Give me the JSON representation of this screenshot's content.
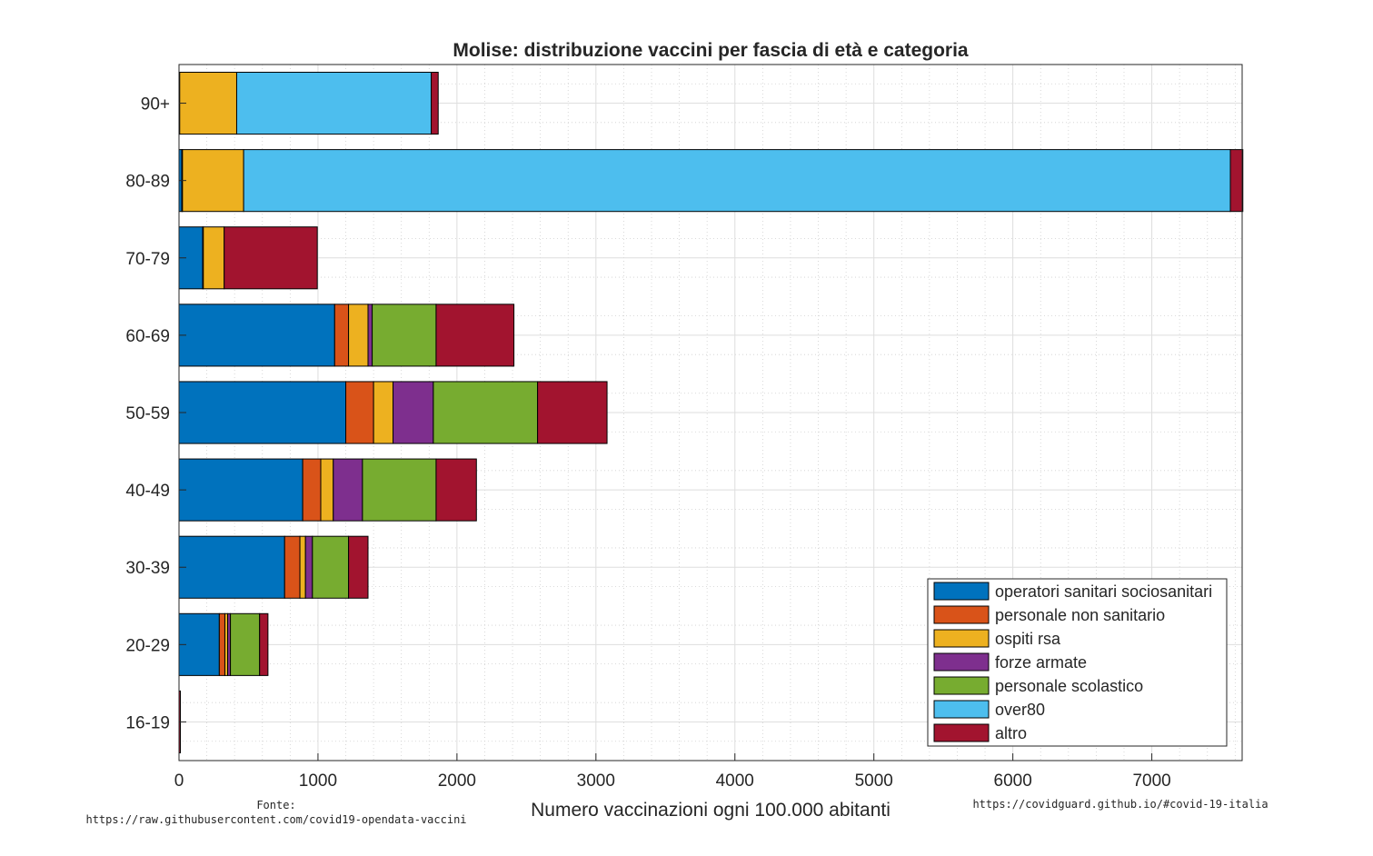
{
  "chart_data": {
    "type": "bar",
    "orientation": "horizontal",
    "stacked": true,
    "title": "Molise: distribuzione vaccini per fascia di età e categoria",
    "xlabel": "Numero vaccinazioni ogni 100.000 abitanti",
    "ylabel": "",
    "xlim": [
      0,
      7650
    ],
    "xticks": [
      0,
      1000,
      2000,
      3000,
      4000,
      5000,
      6000,
      7000
    ],
    "grid": true,
    "minor_grid": true,
    "legend_position": "bottom-right",
    "categories": [
      "16-19",
      "20-29",
      "30-39",
      "40-49",
      "50-59",
      "60-69",
      "70-79",
      "80-89",
      "90+"
    ],
    "series": [
      {
        "name": "operatori sanitari sociosanitari",
        "color": "#0072BD",
        "values": [
          0,
          290,
          760,
          890,
          1200,
          1120,
          170,
          20,
          5
        ]
      },
      {
        "name": "personale non sanitario",
        "color": "#D95319",
        "values": [
          0,
          40,
          110,
          130,
          200,
          100,
          5,
          5,
          0
        ]
      },
      {
        "name": "ospiti rsa",
        "color": "#EDB120",
        "values": [
          0,
          20,
          40,
          90,
          140,
          140,
          150,
          440,
          410
        ]
      },
      {
        "name": "forze armate",
        "color": "#7E2F8E",
        "values": [
          0,
          20,
          50,
          210,
          290,
          30,
          0,
          0,
          0
        ]
      },
      {
        "name": "personale scolastico",
        "color": "#77AC30",
        "values": [
          0,
          210,
          260,
          530,
          750,
          460,
          0,
          0,
          0
        ]
      },
      {
        "name": "over80",
        "color": "#4DBEEE",
        "values": [
          0,
          0,
          0,
          0,
          0,
          0,
          0,
          7100,
          1400
        ]
      },
      {
        "name": "altro",
        "color": "#A2142F",
        "values": [
          10,
          60,
          140,
          290,
          500,
          560,
          670,
          90,
          50
        ]
      }
    ]
  },
  "footer": {
    "source_label": "Fonte:",
    "source_url": "https://raw.githubusercontent.com/covid19-opendata-vaccini",
    "site_url": "https://covidguard.github.io/#covid-19-italia"
  }
}
